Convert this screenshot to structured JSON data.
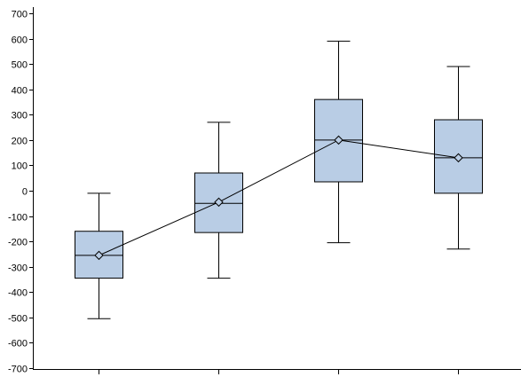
{
  "chart_data": {
    "type": "box",
    "categories": [
      "",
      "",
      "",
      ""
    ],
    "title": "",
    "xlabel": "",
    "ylabel": "",
    "ylim": [
      -700,
      700
    ],
    "y_ticks": [
      700,
      600,
      500,
      400,
      300,
      200,
      100,
      0,
      -100,
      -200,
      -300,
      -400,
      -500,
      -600,
      -700
    ],
    "y_tick_labels": [
      "700",
      "600",
      "500",
      "400",
      "300",
      "200",
      "100",
      "0",
      "-100",
      "-200",
      "-300",
      "-400",
      "-500",
      "-600",
      "-700"
    ],
    "grid": false,
    "legend": "none",
    "colors": {
      "box_fill": "#b9cde5",
      "stroke": "#000000",
      "background": "#ffffff"
    },
    "boxes": [
      {
        "whisker_low": -505,
        "q1": -345,
        "median": -255,
        "q3": -160,
        "whisker_high": -10,
        "mean": -255
      },
      {
        "whisker_low": -345,
        "q1": -165,
        "median": -50,
        "q3": 70,
        "whisker_high": 270,
        "mean": -45
      },
      {
        "whisker_low": -205,
        "q1": 35,
        "median": 200,
        "q3": 360,
        "whisker_high": 590,
        "mean": 200
      },
      {
        "whisker_low": -230,
        "q1": -10,
        "median": 130,
        "q3": 280,
        "whisker_high": 490,
        "mean": 130
      }
    ],
    "mean_line": true
  }
}
